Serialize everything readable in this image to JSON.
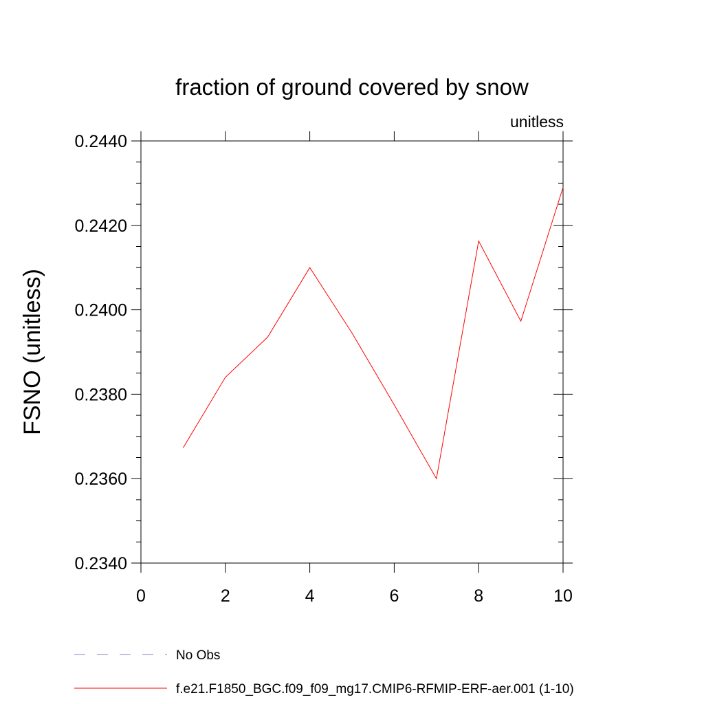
{
  "chart_data": {
    "type": "line",
    "title": "fraction of ground covered by snow",
    "units": "unitless",
    "ylabel": "FSNO  (unitless)",
    "xlabel": "",
    "xlim": [
      0,
      10
    ],
    "ylim": [
      0.234,
      0.244
    ],
    "xticks": [
      0,
      2,
      4,
      6,
      8,
      10
    ],
    "xtick_labels": [
      "0",
      "2",
      "4",
      "6",
      "8",
      "10"
    ],
    "yticks": [
      0.234,
      0.236,
      0.238,
      0.24,
      0.242,
      0.244
    ],
    "ytick_labels": [
      "0.2340",
      "0.2360",
      "0.2380",
      "0.2400",
      "0.2420",
      "0.2440"
    ],
    "grid": false,
    "legend_position": "bottom",
    "series": [
      {
        "name": "f.e21.F1850_BGC.f09_f09_mg17.CMIP6-RFMIP-ERF-aer.001 (1-10)",
        "color": "#ff0000",
        "style": "solid",
        "x": [
          1,
          2,
          3,
          4,
          5,
          6,
          7,
          8,
          9,
          10
        ],
        "y": [
          0.23673,
          0.2384,
          0.23935,
          0.241,
          0.23945,
          0.23775,
          0.236,
          0.24163,
          0.23973,
          0.2429
        ]
      }
    ],
    "legend": [
      {
        "label": "No Obs",
        "color": "#8a7fc0",
        "style": "dashed"
      },
      {
        "label": "f.e21.F1850_BGC.f09_f09_mg17.CMIP6-RFMIP-ERF-aer.001 (1-10)",
        "color": "#ff0000",
        "style": "solid"
      }
    ]
  }
}
